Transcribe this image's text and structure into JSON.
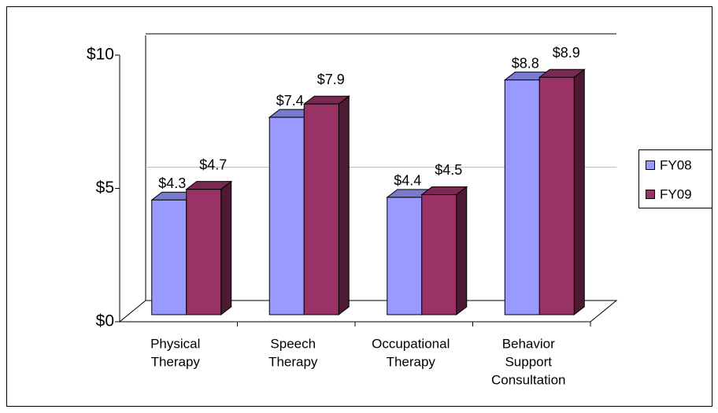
{
  "chart_data": {
    "type": "bar3d",
    "categories": [
      [
        "Physical",
        "Therapy"
      ],
      [
        "Speech",
        "Therapy"
      ],
      [
        "Occupational",
        "Therapy"
      ],
      [
        "Behavior",
        "Support",
        "Consultation"
      ]
    ],
    "series": [
      {
        "name": "FY08",
        "color": "#9999ff",
        "values": [
          4.3,
          7.4,
          4.4,
          8.8
        ],
        "value_labels": [
          "$4.3",
          "$7.4",
          "$4.4",
          "$8.8"
        ]
      },
      {
        "name": "FY09",
        "color": "#993366",
        "values": [
          4.7,
          7.9,
          4.5,
          8.9
        ],
        "value_labels": [
          "$4.7",
          "$7.9",
          "$4.5",
          "$8.9"
        ]
      }
    ],
    "ylim": [
      0,
      10
    ],
    "yticks": [
      {
        "value": 0,
        "label": "$0"
      },
      {
        "value": 5,
        "label": "$5"
      },
      {
        "value": 10,
        "label": "$10"
      }
    ],
    "grid": true,
    "legend": "right"
  }
}
